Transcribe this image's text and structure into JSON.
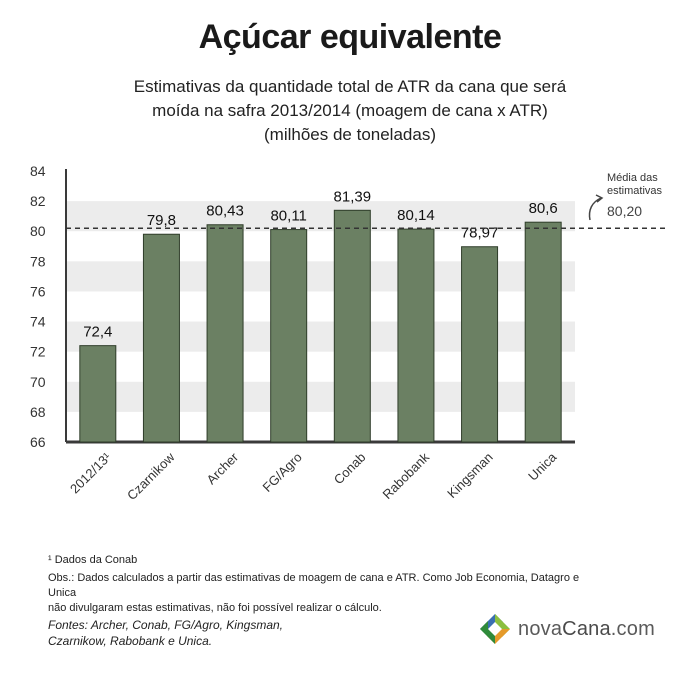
{
  "header": {
    "title": "Açúcar equivalente",
    "subtitle_lines": [
      "Estimativas da quantidade total de ATR da cana que será",
      "moída na safra 2013/2014 (moagem de cana x ATR)",
      "(milhões de toneladas)"
    ]
  },
  "average": {
    "label_lines": [
      "Média das",
      "estimativas"
    ],
    "value_label": "80,20",
    "value": 80.2
  },
  "chart_data": {
    "type": "bar",
    "title": "Açúcar equivalente",
    "categories": [
      "2012/13¹",
      "Czarnikow",
      "Archer",
      "FG/Agro",
      "Conab",
      "Rabobank",
      "Kingsman",
      "Unica"
    ],
    "values": [
      72.4,
      79.8,
      80.43,
      80.11,
      81.39,
      80.14,
      78.97,
      80.6
    ],
    "data_labels": [
      "72,4",
      "79,8",
      "80,43",
      "80,11",
      "81,39",
      "80,14",
      "78,97",
      "80,6"
    ],
    "ylim": [
      66,
      84
    ],
    "yticks": [
      66,
      68,
      70,
      72,
      74,
      76,
      78,
      80,
      82,
      84
    ],
    "reference_line": 80.2,
    "grid": "alternating horizontal bands",
    "colors": {
      "bar": "#6b8063",
      "bar_stroke": "#2f3d2a",
      "band": "#ececec",
      "axis": "#3a3a3a"
    }
  },
  "footer": {
    "footnote": "¹ Dados da Conab",
    "obs_lines": [
      "Obs.: Dados calculados a partir das estimativas de moagem de cana e ATR. Como Job Economia, Datagro e Unica",
      "não divulgaram estas estimativas, não foi possível realizar o cálculo."
    ],
    "sources_lines": [
      "Fontes:  Archer, Conab, FG/Agro, Kingsman,",
      "Czarnikow, Rabobank e Unica."
    ]
  },
  "logo": {
    "text_a": "nova",
    "text_b": "Cana",
    "text_c": ".com"
  }
}
